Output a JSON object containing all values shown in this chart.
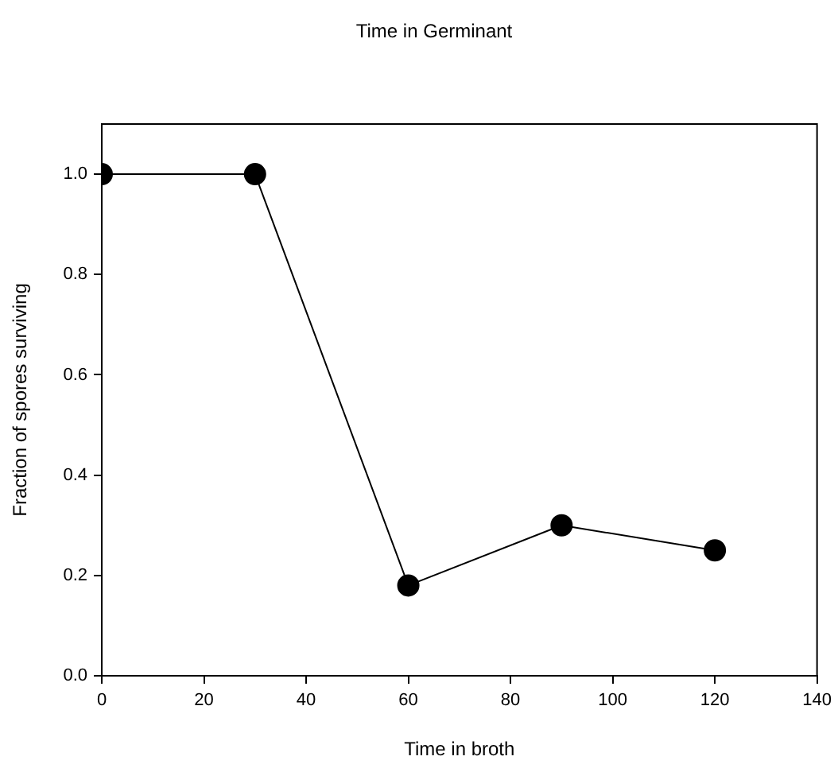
{
  "chart_data": {
    "type": "line",
    "title": "Time in Germinant",
    "xlabel": "Time in broth",
    "ylabel": "Fraction of spores surviving",
    "x": [
      0,
      30,
      60,
      90,
      120
    ],
    "series": [
      {
        "color": "#000000",
        "values": [
          1.0,
          1.0,
          0.18,
          0.3,
          0.25
        ]
      }
    ],
    "xlim": [
      0,
      140
    ],
    "xticks": [
      0,
      20,
      40,
      60,
      80,
      100,
      120,
      140
    ],
    "ylim": [
      0,
      1.1
    ],
    "yticks": [
      {
        "value": 0,
        "label": "0.0"
      },
      0.2,
      0.4,
      0.6,
      0.8,
      {
        "value": 1,
        "label": "1.0"
      }
    ],
    "grid": false,
    "legend": false,
    "marker": "circle",
    "line_style": "solid"
  }
}
